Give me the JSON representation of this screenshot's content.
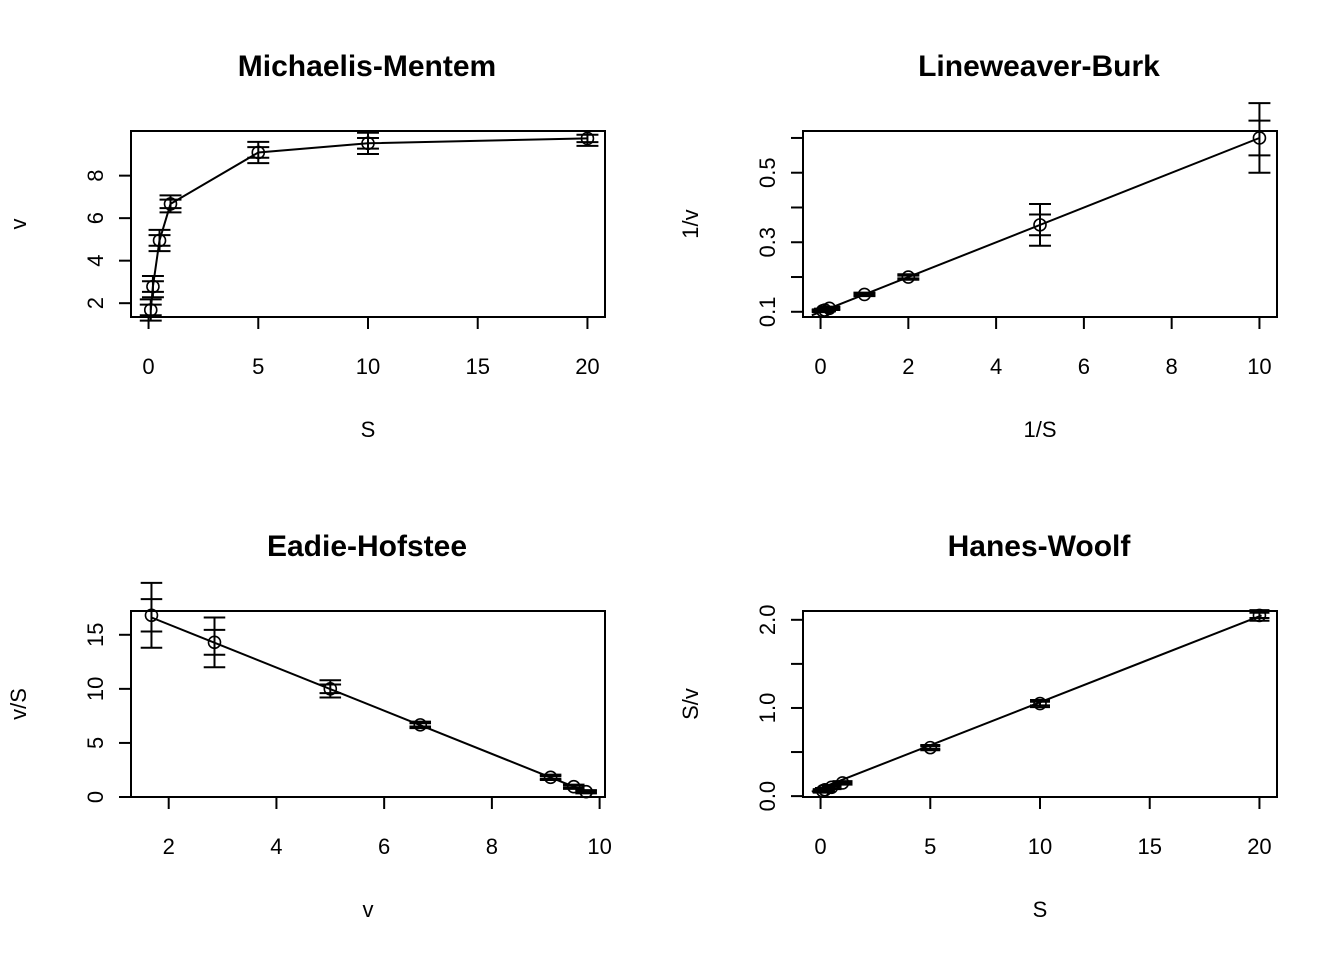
{
  "chart_data": [
    {
      "type": "scatter",
      "title": "Michaelis-Mentem",
      "xlabel": "S",
      "ylabel": "v",
      "xlim": [
        -0.8,
        20.8
      ],
      "ylim": [
        1.35,
        10.1
      ],
      "xticks": [
        0,
        5,
        10,
        15,
        20
      ],
      "yticks": [
        2,
        4,
        6,
        8
      ],
      "x": [
        0.1,
        0.2,
        0.5,
        1,
        5,
        10,
        20
      ],
      "y": [
        1.68,
        2.78,
        4.95,
        6.67,
        9.09,
        9.52,
        9.75
      ],
      "y_err": [
        0.5,
        0.5,
        0.5,
        0.4,
        0.5,
        0.5,
        0.35
      ],
      "x_err": [
        0.5,
        0.5,
        0.5,
        0.5,
        0.5,
        0.5,
        0.5
      ],
      "line": {
        "x": [
          0.1,
          0.2,
          0.5,
          1,
          5,
          10,
          20
        ],
        "y": [
          1.68,
          2.78,
          4.95,
          6.67,
          9.09,
          9.52,
          9.75
        ]
      }
    },
    {
      "type": "scatter",
      "title": "Lineweaver-Burk",
      "xlabel": "1/S",
      "ylabel": "1/v",
      "xlim": [
        -0.4,
        10.4
      ],
      "ylim": [
        0.085,
        0.62
      ],
      "xticks": [
        0,
        2,
        4,
        6,
        8,
        10
      ],
      "yticks": [
        0.1,
        0.2,
        0.3,
        0.4,
        0.5,
        0.6
      ],
      "ytick_labels": [
        "0.1",
        "",
        "0.3",
        "",
        "0.5",
        ""
      ],
      "x": [
        0.05,
        0.1,
        0.2,
        1,
        2,
        5,
        10
      ],
      "y": [
        0.103,
        0.105,
        0.11,
        0.15,
        0.2,
        0.35,
        0.6
      ],
      "y_err": [
        0.004,
        0.004,
        0.005,
        0.005,
        0.008,
        0.06,
        0.1
      ],
      "x_err": [
        0.25,
        0.25,
        0.25,
        0.25,
        0.25,
        0.25,
        0.25
      ],
      "line": {
        "x": [
          -0.2,
          10.0
        ],
        "y": [
          0.09,
          0.6
        ]
      }
    },
    {
      "type": "scatter",
      "title": "Eadie-Hofstee",
      "xlabel": "v",
      "ylabel": "v/S",
      "xlim": [
        1.3,
        10.1
      ],
      "ylim": [
        0,
        17.2
      ],
      "xticks": [
        2,
        4,
        6,
        8,
        10
      ],
      "yticks": [
        0,
        5,
        10,
        15
      ],
      "x": [
        1.68,
        2.85,
        5.0,
        6.67,
        9.09,
        9.52,
        9.75
      ],
      "y": [
        16.8,
        14.3,
        10.0,
        6.67,
        1.82,
        0.95,
        0.49
      ],
      "y_err": [
        3.0,
        2.3,
        0.8,
        0.3,
        0.25,
        0.2,
        0.15
      ],
      "x_err": [
        0.2,
        0.2,
        0.2,
        0.2,
        0.2,
        0.2,
        0.2
      ],
      "line": {
        "x": [
          1.68,
          9.85
        ],
        "y": [
          16.6,
          0.3
        ]
      }
    },
    {
      "type": "scatter",
      "title": "Hanes-Woolf",
      "xlabel": "S",
      "ylabel": "S/v",
      "xlim": [
        -0.8,
        20.8
      ],
      "ylim": [
        -0.01,
        2.1
      ],
      "xticks": [
        0,
        5,
        10,
        15,
        20
      ],
      "yticks": [
        0,
        0.5,
        1.0,
        1.5,
        2.0
      ],
      "ytick_labels": [
        "0.0",
        "",
        "1.0",
        "",
        "2.0"
      ],
      "x": [
        0.1,
        0.2,
        0.5,
        1,
        5,
        10,
        20
      ],
      "y": [
        0.06,
        0.072,
        0.1,
        0.15,
        0.55,
        1.05,
        2.05
      ],
      "y_err": [
        0.02,
        0.02,
        0.02,
        0.02,
        0.03,
        0.04,
        0.06
      ],
      "x_err": [
        0.4,
        0.4,
        0.4,
        0.4,
        0.4,
        0.4,
        0.4
      ],
      "line": {
        "x": [
          -0.4,
          20.1
        ],
        "y": [
          0.05,
          2.05
        ]
      }
    }
  ]
}
